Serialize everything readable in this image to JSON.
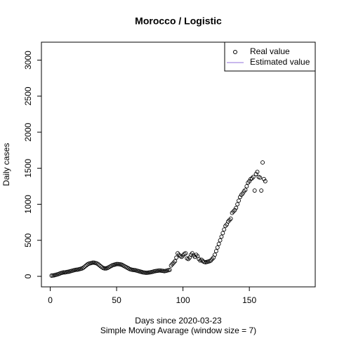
{
  "chart_data": {
    "type": "scatter",
    "title": "Morocco / Logistic",
    "xlabel": "Days since 2020-03-23",
    "subtitle": "Simple Moving Avarage (window size = 7)",
    "ylabel": "Daily cases",
    "xlim": [
      -6.64,
      199.64
    ],
    "ylim": [
      -146,
      3249
    ],
    "xticks": [
      0,
      50,
      100,
      150
    ],
    "yticks": [
      0,
      500,
      1000,
      1500,
      2000,
      2500,
      3000
    ],
    "legend": "topright",
    "series": [
      {
        "name": "Real value",
        "color": "#000000",
        "x": [
          1,
          2,
          3,
          4,
          5,
          6,
          7,
          8,
          9,
          10,
          11,
          12,
          13,
          14,
          15,
          16,
          17,
          18,
          19,
          20,
          21,
          22,
          23,
          24,
          25,
          26,
          27,
          28,
          29,
          30,
          31,
          32,
          33,
          34,
          35,
          36,
          37,
          38,
          39,
          40,
          41,
          42,
          43,
          44,
          45,
          46,
          47,
          48,
          49,
          50,
          51,
          52,
          53,
          54,
          55,
          56,
          57,
          58,
          59,
          60,
          61,
          62,
          63,
          64,
          65,
          66,
          67,
          68,
          69,
          70,
          71,
          72,
          73,
          74,
          75,
          76,
          77,
          78,
          79,
          80,
          81,
          82,
          83,
          84,
          85,
          86,
          87,
          88,
          89,
          90,
          91,
          92,
          93,
          94,
          95,
          96,
          97,
          98,
          99,
          100,
          101,
          102,
          103,
          104,
          105,
          106,
          107,
          108,
          109,
          110,
          111,
          112,
          113,
          114,
          115,
          116,
          117,
          118,
          119,
          120,
          121,
          122,
          123,
          124,
          125,
          126,
          127,
          128,
          129,
          130,
          131,
          132,
          133,
          134,
          135,
          136,
          137,
          138,
          139,
          140,
          141,
          142,
          143,
          144,
          145,
          146,
          147,
          148,
          149,
          150,
          151,
          152,
          153,
          154,
          155,
          156,
          157,
          158,
          159,
          160,
          161,
          162
        ],
        "values": [
          10,
          12,
          15,
          20,
          25,
          30,
          38,
          45,
          50,
          55,
          55,
          58,
          62,
          65,
          70,
          75,
          80,
          85,
          90,
          92,
          95,
          100,
          105,
          110,
          120,
          135,
          150,
          165,
          175,
          180,
          185,
          190,
          190,
          185,
          180,
          170,
          155,
          140,
          125,
          115,
          110,
          110,
          115,
          125,
          135,
          145,
          155,
          160,
          165,
          170,
          170,
          168,
          165,
          160,
          150,
          140,
          130,
          120,
          110,
          100,
          95,
          90,
          88,
          85,
          80,
          75,
          70,
          65,
          60,
          55,
          52,
          50,
          50,
          52,
          55,
          58,
          62,
          68,
          72,
          75,
          78,
          80,
          80,
          78,
          75,
          72,
          75,
          80,
          85,
          90,
          150,
          170,
          190,
          210,
          260,
          320,
          300,
          280,
          270,
          290,
          310,
          320,
          250,
          240,
          260,
          300,
          320,
          290,
          270,
          300,
          280,
          240,
          220,
          230,
          210,
          200,
          195,
          200,
          205,
          210,
          220,
          240,
          260,
          300,
          350,
          400,
          450,
          500,
          550,
          600,
          650,
          700,
          720,
          760,
          780,
          800,
          880,
          900,
          920,
          950,
          1000,
          1050,
          1100,
          1130,
          1150,
          1180,
          1200,
          1250,
          1300,
          1320,
          1350,
          1360,
          1380,
          1190,
          1420,
          1450,
          1380,
          1370,
          1190,
          1580,
          1350,
          1320
        ]
      },
      {
        "name": "Estimated value",
        "color": "#9370db",
        "x": [],
        "values": []
      }
    ]
  }
}
